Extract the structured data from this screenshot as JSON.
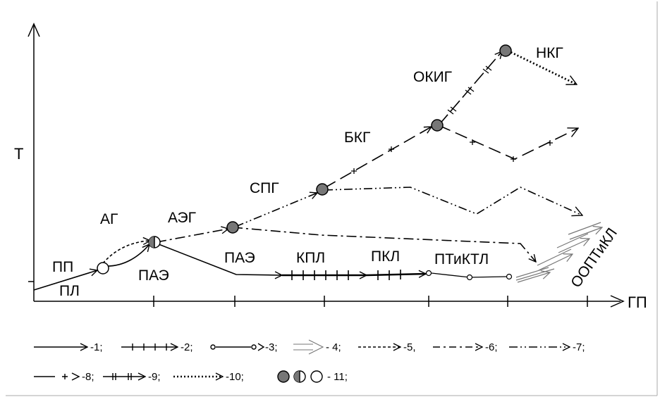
{
  "axes": {
    "y_label": "Т",
    "x_label": "ГП"
  },
  "stage_labels": {
    "pp": "ПП",
    "pl": "ПЛ",
    "ag": "АГ",
    "pae1": "ПАЭ",
    "aeg": "АЭГ",
    "pae2": "ПАЭ",
    "spg": "СПГ",
    "kpl": "КПЛ",
    "pkl": "ПКЛ",
    "bkg": "БКГ",
    "ptiktl": "ПТиКТЛ",
    "okig": "ОКИГ",
    "nkg": "НКГ",
    "oopt": "ООПТиКЛ"
  },
  "legend": {
    "l1": "-1;",
    "l2": "-2;",
    "l3": "-3;",
    "l4": "- 4;",
    "l5": "-5,",
    "l6": "-6;",
    "l7": "-7;",
    "l8": "-8;",
    "l9": "-9;",
    "l10": "-10;",
    "l11": "- 11;"
  }
}
